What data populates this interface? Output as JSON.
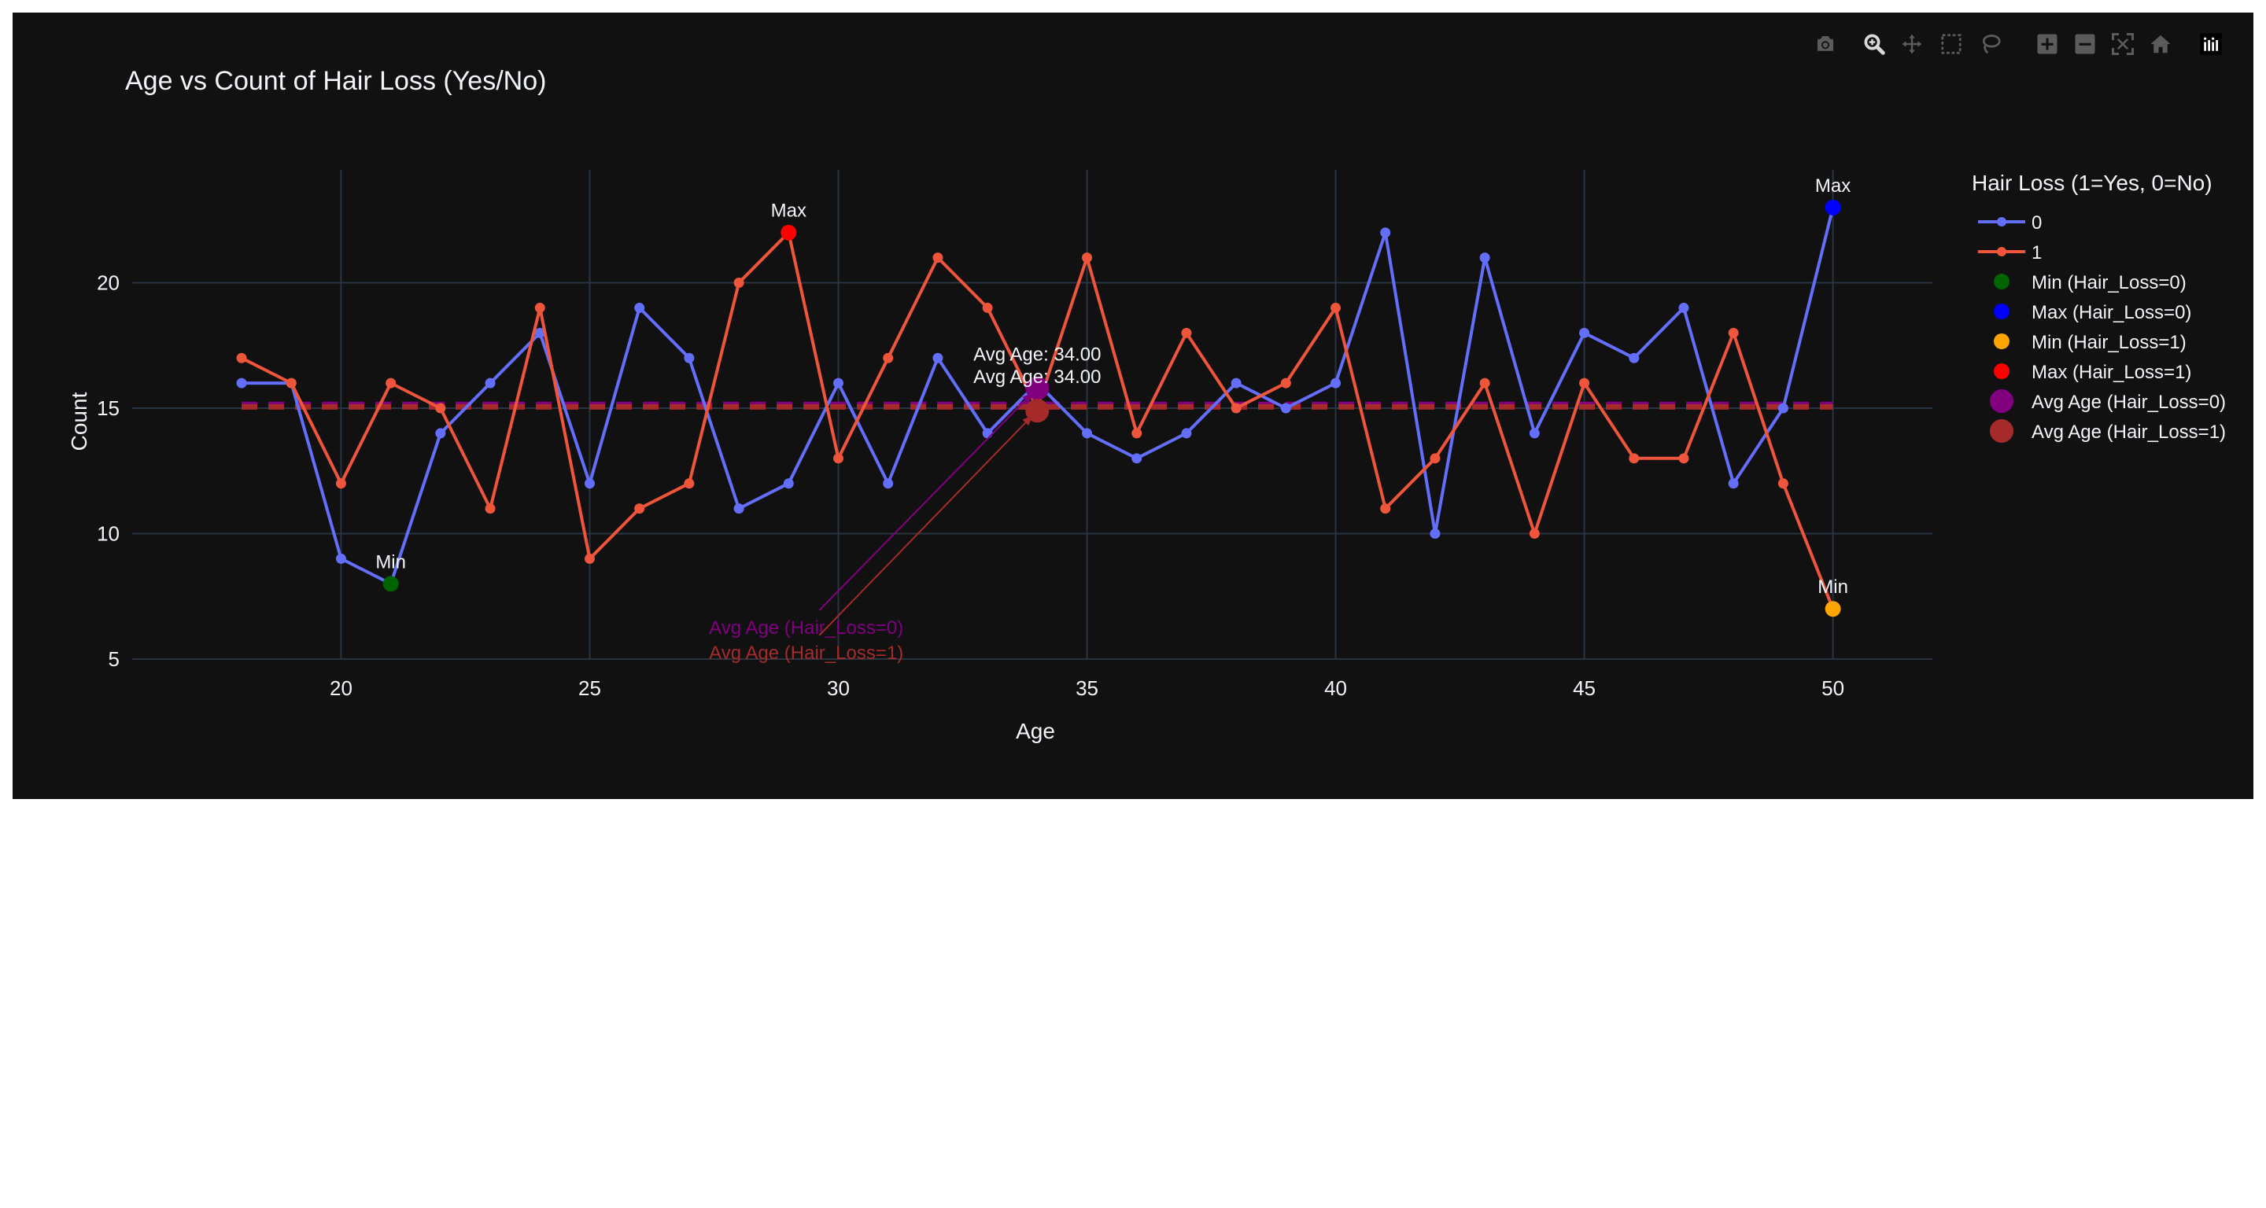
{
  "colors": {
    "background": "#111111",
    "grid": "#283442",
    "text": "#f2f5fa",
    "series0": "#636efa",
    "series1": "#ef553b",
    "min0": "#006400",
    "max0": "#0000ff",
    "min1": "#ffa500",
    "max1": "#ff0000",
    "avg0": "#800080",
    "avg1": "#a52a2a"
  },
  "modebar": [
    {
      "name": "camera-icon",
      "label": "Download plot as a png"
    },
    {
      "name": "zoom-icon",
      "label": "Zoom"
    },
    {
      "name": "pan-icon",
      "label": "Pan"
    },
    {
      "name": "box-select-icon",
      "label": "Box Select"
    },
    {
      "name": "lasso-select-icon",
      "label": "Lasso Select"
    },
    {
      "name": "zoom-in-icon",
      "label": "Zoom in"
    },
    {
      "name": "zoom-out-icon",
      "label": "Zoom out"
    },
    {
      "name": "autoscale-icon",
      "label": "Autoscale"
    },
    {
      "name": "reset-axes-icon",
      "label": "Reset axes"
    },
    {
      "name": "plotly-logo-icon",
      "label": "Produced with Plotly"
    }
  ],
  "chart_data": {
    "type": "line",
    "title": "Age vs Count of Hair Loss (Yes/No)",
    "xlabel": "Age",
    "ylabel": "Count",
    "xlim": [
      15.8,
      52
    ],
    "ylim": [
      5,
      24.5
    ],
    "xticks": [
      20,
      25,
      30,
      35,
      40,
      45,
      50
    ],
    "yticks": [
      5,
      10,
      15,
      20
    ],
    "grid": true,
    "legend_placement": "right",
    "legend_title": "Hair Loss (1=Yes, 0=No)",
    "x": [
      18,
      19,
      20,
      21,
      22,
      23,
      24,
      25,
      26,
      27,
      28,
      29,
      30,
      31,
      32,
      33,
      34,
      35,
      36,
      37,
      38,
      39,
      40,
      41,
      42,
      43,
      44,
      45,
      46,
      47,
      48,
      49,
      50
    ],
    "series": [
      {
        "name": "0",
        "color": "#636efa",
        "values": [
          16,
          16,
          9,
          8,
          14,
          16,
          18,
          12,
          19,
          17,
          11,
          12,
          16,
          12,
          17,
          14,
          16,
          14,
          13,
          14,
          16,
          15,
          16,
          22,
          10,
          21,
          14,
          18,
          17,
          19,
          12,
          15,
          23
        ]
      },
      {
        "name": "1",
        "color": "#ef553b",
        "values": [
          17,
          16,
          12,
          16,
          15,
          11,
          19,
          9,
          11,
          12,
          20,
          22,
          13,
          17,
          21,
          19,
          15,
          21,
          14,
          18,
          15,
          16,
          19,
          11,
          13,
          16,
          10,
          16,
          13,
          13,
          18,
          12,
          7
        ]
      }
    ],
    "markers": [
      {
        "name": "Min (Hair_Loss=0)",
        "x": 21,
        "y": 8,
        "color": "#006400",
        "size": "small",
        "label": "Min",
        "label_pos": "above"
      },
      {
        "name": "Max (Hair_Loss=0)",
        "x": 50,
        "y": 23,
        "color": "#0000ff",
        "size": "small",
        "label": "Max",
        "label_pos": "above"
      },
      {
        "name": "Min (Hair_Loss=1)",
        "x": 50,
        "y": 7,
        "color": "#ffa500",
        "size": "small",
        "label": "Min",
        "label_pos": "above"
      },
      {
        "name": "Max (Hair_Loss=1)",
        "x": 29,
        "y": 22,
        "color": "#ff0000",
        "size": "small",
        "label": "Max",
        "label_pos": "above"
      },
      {
        "name": "Avg Age (Hair_Loss=0)",
        "x": 34,
        "y": 15.8,
        "color": "#800080",
        "size": "large",
        "label": "",
        "label_pos": ""
      },
      {
        "name": "Avg Age (Hair_Loss=1)",
        "x": 34,
        "y": 14.9,
        "color": "#a52a2a",
        "size": "large",
        "label": "",
        "label_pos": ""
      }
    ],
    "avg_lines": [
      {
        "y": 15.15,
        "color": "#800080",
        "x_from": 18,
        "x_to": 50
      },
      {
        "y": 15.05,
        "color": "#a52a2a",
        "x_from": 18,
        "x_to": 50
      }
    ],
    "annotations": [
      {
        "text": "Avg Age: 34.00",
        "x": 34,
        "y": 16.9
      },
      {
        "text": "Avg Age: 34.00",
        "x": 34,
        "y": 16.0
      }
    ],
    "arrows": [
      {
        "text": "Avg Age (Hair_Loss=0)",
        "color": "#800080",
        "x": 34,
        "y": 15.8,
        "text_x": 27.4,
        "text_y": 6.0
      },
      {
        "text": "Avg Age (Hair_Loss=1)",
        "color": "#a52a2a",
        "x": 34,
        "y": 14.9,
        "text_x": 27.4,
        "text_y": 5.0
      }
    ],
    "legend": [
      {
        "label": "0",
        "kind": "line",
        "color": "#636efa"
      },
      {
        "label": "1",
        "kind": "line",
        "color": "#ef553b"
      },
      {
        "label": "Min (Hair_Loss=0)",
        "kind": "dot",
        "color": "#006400"
      },
      {
        "label": "Max (Hair_Loss=0)",
        "kind": "dot",
        "color": "#0000ff"
      },
      {
        "label": "Min (Hair_Loss=1)",
        "kind": "dot",
        "color": "#ffa500"
      },
      {
        "label": "Max (Hair_Loss=1)",
        "kind": "dot",
        "color": "#ff0000"
      },
      {
        "label": "Avg Age (Hair_Loss=0)",
        "kind": "bigdot",
        "color": "#800080"
      },
      {
        "label": "Avg Age (Hair_Loss=1)",
        "kind": "bigdot",
        "color": "#a52a2a"
      }
    ]
  }
}
